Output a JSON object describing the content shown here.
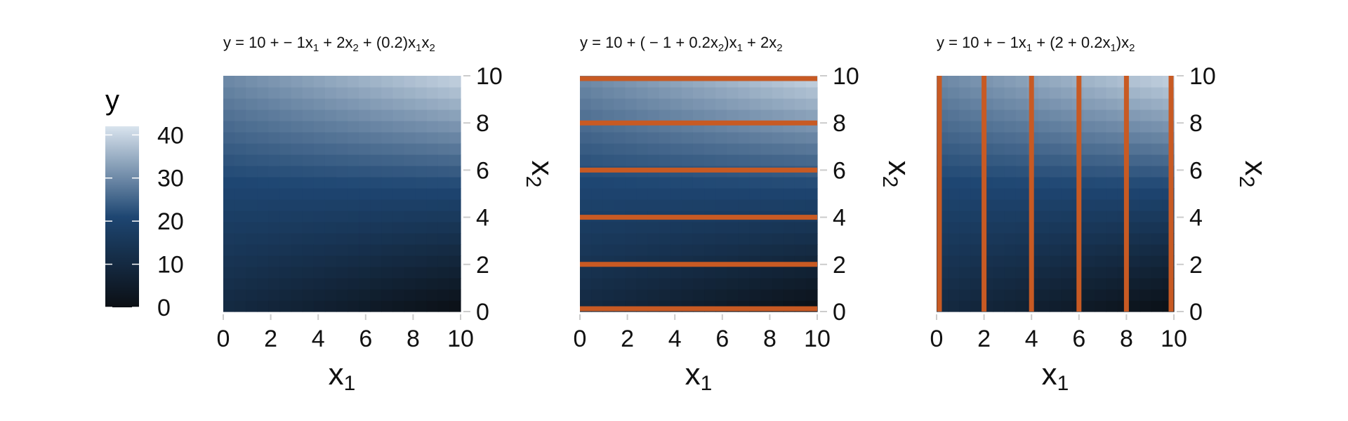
{
  "palette": {
    "low": "#0b0f14",
    "mid": "#1e4672",
    "high": "#d9e4ee",
    "line": "#c85a23",
    "axis_tick": "#cccccc",
    "text": "#111111"
  },
  "legend": {
    "title": "y",
    "ticks": [
      "0",
      "10",
      "20",
      "30",
      "40"
    ],
    "values": [
      0,
      10,
      20,
      30,
      40
    ],
    "range": [
      0,
      42
    ]
  },
  "chart_data": [
    {
      "type": "heatmap",
      "title": {
        "parts": [
          {
            "t": "y = 10 + − 1x"
          },
          {
            "t": "1",
            "sub": true
          },
          {
            "t": " + 2x"
          },
          {
            "t": "2",
            "sub": true
          },
          {
            "t": " + (0.2)x"
          },
          {
            "t": "1",
            "sub": true
          },
          {
            "t": "x"
          },
          {
            "t": "2",
            "sub": true
          }
        ]
      },
      "formula": {
        "intercept": 10,
        "b1": -1,
        "b2": 2,
        "b12": 0.2
      },
      "x_range": [
        0,
        10
      ],
      "y_range": [
        0,
        10
      ],
      "x_ticks": [
        "0",
        "2",
        "4",
        "6",
        "8",
        "10"
      ],
      "x_tick_values": [
        0,
        2,
        4,
        6,
        8,
        10
      ],
      "y_ticks": [
        "0",
        "2",
        "4",
        "6",
        "8",
        "10"
      ],
      "y_tick_values": [
        0,
        2,
        4,
        6,
        8,
        10
      ],
      "xlabel": {
        "main": "x",
        "sub": "1"
      },
      "ylabel": {
        "main": "x",
        "sub": "2"
      },
      "grid_cells": 21,
      "lines": null
    },
    {
      "type": "heatmap",
      "title": {
        "parts": [
          {
            "t": "y = 10 + ( − 1 + 0.2x"
          },
          {
            "t": "2",
            "sub": true
          },
          {
            "t": ")x"
          },
          {
            "t": "1",
            "sub": true
          },
          {
            "t": " + 2x"
          },
          {
            "t": "2",
            "sub": true
          }
        ]
      },
      "formula": {
        "intercept": 10,
        "b1": -1,
        "b2": 2,
        "b12": 0.2
      },
      "x_range": [
        0,
        10
      ],
      "y_range": [
        0,
        10
      ],
      "x_ticks": [
        "0",
        "2",
        "4",
        "6",
        "8",
        "10"
      ],
      "x_tick_values": [
        0,
        2,
        4,
        6,
        8,
        10
      ],
      "y_ticks": [
        "0",
        "2",
        "4",
        "6",
        "8",
        "10"
      ],
      "y_tick_values": [
        0,
        2,
        4,
        6,
        8,
        10
      ],
      "xlabel": {
        "main": "x",
        "sub": "1"
      },
      "ylabel": {
        "main": "x",
        "sub": "2"
      },
      "grid_cells": 21,
      "lines": {
        "orientation": "horizontal",
        "at": [
          0,
          2,
          4,
          6,
          8,
          10
        ]
      }
    },
    {
      "type": "heatmap",
      "title": {
        "parts": [
          {
            "t": "y = 10 + − 1x"
          },
          {
            "t": "1",
            "sub": true
          },
          {
            "t": " + (2 + 0.2x"
          },
          {
            "t": "1",
            "sub": true
          },
          {
            "t": ")x"
          },
          {
            "t": "2",
            "sub": true
          }
        ]
      },
      "formula": {
        "intercept": 10,
        "b1": -1,
        "b2": 2,
        "b12": 0.2
      },
      "x_range": [
        0,
        10
      ],
      "y_range": [
        0,
        10
      ],
      "x_ticks": [
        "0",
        "2",
        "4",
        "6",
        "8",
        "10"
      ],
      "x_tick_values": [
        0,
        2,
        4,
        6,
        8,
        10
      ],
      "y_ticks": [
        "0",
        "2",
        "4",
        "6",
        "8",
        "10"
      ],
      "y_tick_values": [
        0,
        2,
        4,
        6,
        8,
        10
      ],
      "xlabel": {
        "main": "x",
        "sub": "1"
      },
      "ylabel": {
        "main": "x",
        "sub": "2"
      },
      "grid_cells": 21,
      "lines": {
        "orientation": "vertical",
        "at": [
          0,
          2,
          4,
          6,
          8,
          10
        ]
      }
    }
  ]
}
